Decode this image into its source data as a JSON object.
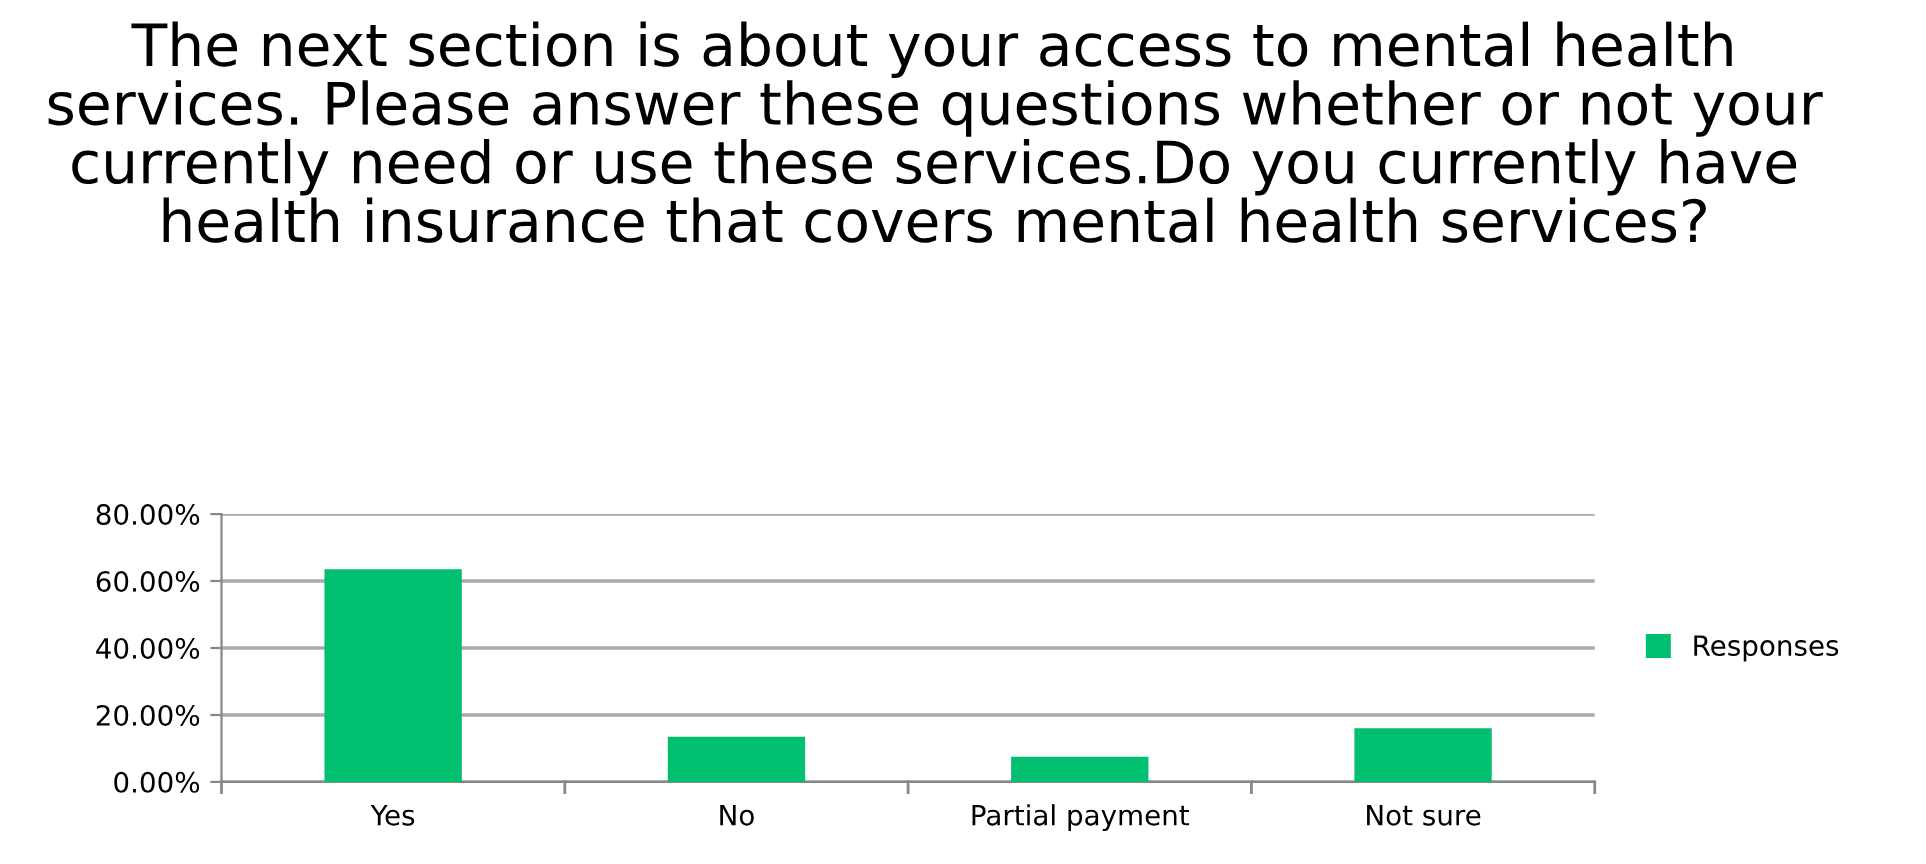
{
  "chart_data": {
    "type": "bar",
    "title": "The next section is about your access to mental health services. Please answer these questions whether or not your currently need or use these services.Do you currently have health insurance that covers mental health services?",
    "categories": [
      "Yes",
      "No",
      "Partial payment",
      "Not sure"
    ],
    "series": [
      {
        "name": "Responses",
        "color": "#00bf6f",
        "values": [
          63.5,
          13.5,
          7.5,
          16
        ]
      }
    ],
    "ylim": [
      0,
      80
    ],
    "yticks": [
      {
        "value": 0,
        "label": "0.00%"
      },
      {
        "value": 20,
        "label": "20.00%"
      },
      {
        "value": 40,
        "label": "40.00%"
      },
      {
        "value": 60,
        "label": "60.00%"
      },
      {
        "value": 80,
        "label": "80.00%"
      }
    ],
    "grid": "y",
    "legend": "right"
  }
}
